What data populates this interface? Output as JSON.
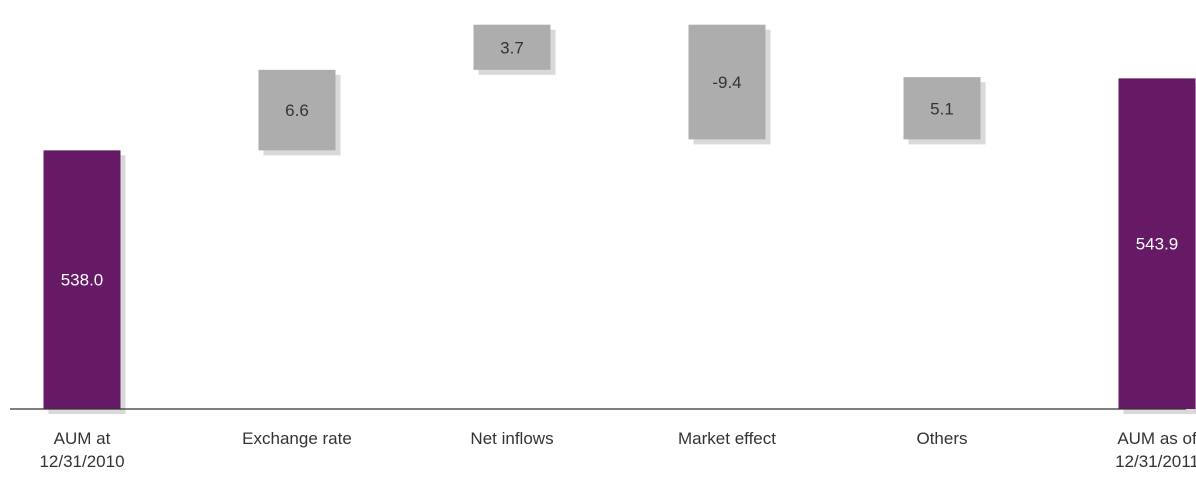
{
  "chart_data": {
    "type": "bar",
    "subtype": "waterfall",
    "categories": [
      [
        "AUM at",
        "12/31/2010"
      ],
      [
        "Exchange rate"
      ],
      [
        "Net inflows"
      ],
      [
        "Market effect"
      ],
      [
        "Others"
      ],
      [
        "AUM as of",
        "12/31/2011"
      ]
    ],
    "values": [
      538.0,
      6.6,
      3.7,
      -9.4,
      5.1,
      543.9
    ],
    "value_labels": [
      "538.0",
      "6.6",
      "3.7",
      "-9.4",
      "5.1",
      "543.9"
    ],
    "bar_kinds": [
      "total",
      "delta",
      "delta",
      "delta",
      "delta",
      "total"
    ],
    "title": "",
    "xlabel": "",
    "ylabel": "",
    "grid": false,
    "legend": "none",
    "colors": {
      "total": "#661a66",
      "delta": "#adadad",
      "shadow": "#d9d9d9",
      "axis": "#333333",
      "text": "#333333"
    }
  }
}
